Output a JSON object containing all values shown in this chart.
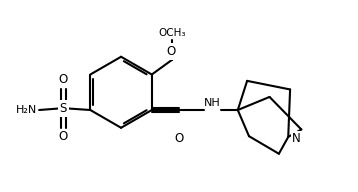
{
  "bg_color": "#ffffff",
  "line_color": "#000000",
  "bond_lw": 1.5,
  "fig_size": [
    3.58,
    1.92
  ],
  "dpi": 100,
  "xlim": [
    0,
    9.5
  ],
  "ylim": [
    0,
    5.1
  ]
}
